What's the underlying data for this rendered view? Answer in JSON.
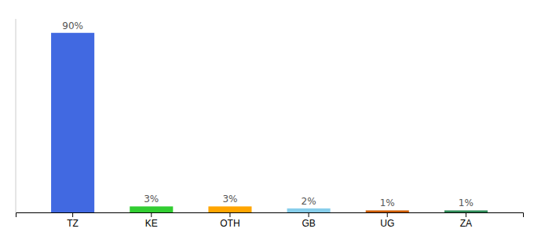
{
  "chart_data": {
    "type": "bar",
    "categories": [
      "TZ",
      "KE",
      "OTH",
      "GB",
      "UG",
      "ZA"
    ],
    "values": [
      90,
      3,
      3,
      2,
      1,
      1
    ],
    "value_labels": [
      "90%",
      "3%",
      "3%",
      "2%",
      "1%",
      "1%"
    ],
    "colors": [
      "#4169e1",
      "#32cd32",
      "#ffa500",
      "#87ceeb",
      "#cd5c00",
      "#2e8b57"
    ],
    "ylim": [
      0,
      97
    ],
    "data_labels": true,
    "tick_labels": "x"
  }
}
